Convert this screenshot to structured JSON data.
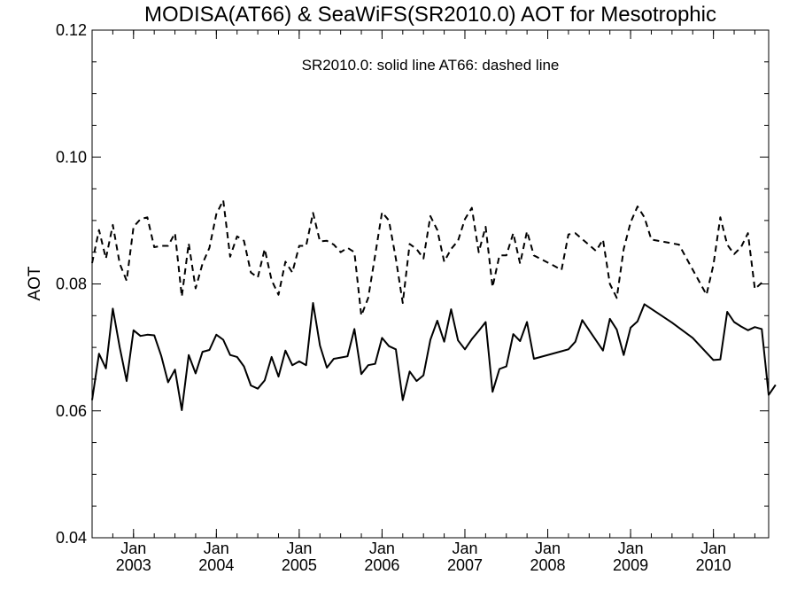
{
  "chart_data": {
    "type": "line",
    "title": "MODISA(AT66) & SeaWiFS(SR2010.0)  AOT for Mesotrophic",
    "annotation": "SR2010.0: solid line   AT66: dashed line",
    "xlabel": "",
    "ylabel": "AOT",
    "ylim": [
      0.04,
      0.12
    ],
    "xlim": [
      "2002-07-01",
      "2010-09-01"
    ],
    "grid": false,
    "y_ticks": [
      "0.04",
      "0.06",
      "0.08",
      "0.10",
      "0.12"
    ],
    "x_ticks": [
      {
        "month": "Jan",
        "year": "2003",
        "date": "2003-01-01"
      },
      {
        "month": "Jan",
        "year": "2004",
        "date": "2004-01-01"
      },
      {
        "month": "Jan",
        "year": "2005",
        "date": "2005-01-01"
      },
      {
        "month": "Jan",
        "year": "2006",
        "date": "2006-01-01"
      },
      {
        "month": "Jan",
        "year": "2007",
        "date": "2007-01-01"
      },
      {
        "month": "Jan",
        "year": "2008",
        "date": "2008-01-01"
      },
      {
        "month": "Jan",
        "year": "2009",
        "date": "2009-01-01"
      },
      {
        "month": "Jan",
        "year": "2010",
        "date": "2010-01-01"
      }
    ],
    "series": [
      {
        "name": "SR2010.0",
        "style": "solid",
        "color": "#000000",
        "points": [
          [
            "2002-07",
            0.0617
          ],
          [
            "2002-08",
            0.069
          ],
          [
            "2002-09",
            0.0667
          ],
          [
            "2002-10",
            0.0761
          ],
          [
            "2002-11",
            0.07
          ],
          [
            "2002-12",
            0.0647
          ],
          [
            "2003-01",
            0.0727
          ],
          [
            "2003-02",
            0.0718
          ],
          [
            "2003-03",
            0.072
          ],
          [
            "2003-04",
            0.0719
          ],
          [
            "2003-05",
            0.0687
          ],
          [
            "2003-06",
            0.0645
          ],
          [
            "2003-07",
            0.0665
          ],
          [
            "2003-08",
            0.0601
          ],
          [
            "2003-09",
            0.0688
          ],
          [
            "2003-10",
            0.0659
          ],
          [
            "2003-11",
            0.0693
          ],
          [
            "2003-12",
            0.0696
          ],
          [
            "2004-01",
            0.072
          ],
          [
            "2004-02",
            0.0712
          ],
          [
            "2004-03",
            0.0688
          ],
          [
            "2004-04",
            0.0685
          ],
          [
            "2004-05",
            0.067
          ],
          [
            "2004-06",
            0.064
          ],
          [
            "2004-07",
            0.0635
          ],
          [
            "2004-08",
            0.0648
          ],
          [
            "2004-09",
            0.0685
          ],
          [
            "2004-10",
            0.0654
          ],
          [
            "2004-11",
            0.0695
          ],
          [
            "2004-12",
            0.0672
          ],
          [
            "2005-01",
            0.0678
          ],
          [
            "2005-02",
            0.0672
          ],
          [
            "2005-03",
            0.077
          ],
          [
            "2005-04",
            0.0703
          ],
          [
            "2005-05",
            0.0668
          ],
          [
            "2005-06",
            0.0682
          ],
          [
            "2005-07",
            0.0684
          ],
          [
            "2005-08",
            0.0686
          ],
          [
            "2005-09",
            0.0729
          ],
          [
            "2005-10",
            0.0658
          ],
          [
            "2005-11",
            0.0672
          ],
          [
            "2005-12",
            0.0674
          ],
          [
            "2006-01",
            0.0715
          ],
          [
            "2006-02",
            0.0702
          ],
          [
            "2006-03",
            0.0697
          ],
          [
            "2006-04",
            0.0617
          ],
          [
            "2006-05",
            0.0662
          ],
          [
            "2006-06",
            0.0647
          ],
          [
            "2006-07",
            0.0656
          ],
          [
            "2006-08",
            0.0712
          ],
          [
            "2006-09",
            0.0742
          ],
          [
            "2006-10",
            0.0709
          ],
          [
            "2006-11",
            0.076
          ],
          [
            "2006-12",
            0.0711
          ],
          [
            "2007-01",
            0.0697
          ],
          [
            "2007-02",
            0.0713
          ],
          [
            "2007-03",
            0.0726
          ],
          [
            "2007-04",
            0.074
          ],
          [
            "2007-05",
            0.063
          ],
          [
            "2007-06",
            0.0666
          ],
          [
            "2007-07",
            0.067
          ],
          [
            "2007-08",
            0.0721
          ],
          [
            "2007-09",
            0.071
          ],
          [
            "2007-10",
            0.074
          ],
          [
            "2007-11",
            0.0682
          ],
          [
            "2008-04",
            0.0697
          ],
          [
            "2008-05",
            0.0709
          ],
          [
            "2008-06",
            0.0743
          ],
          [
            "2008-09",
            0.0695
          ],
          [
            "2008-10",
            0.0745
          ],
          [
            "2008-11",
            0.0728
          ],
          [
            "2008-12",
            0.0688
          ],
          [
            "2009-01",
            0.0731
          ],
          [
            "2009-02",
            0.0741
          ],
          [
            "2009-03",
            0.0768
          ],
          [
            "2009-07",
            0.0739
          ],
          [
            "2009-10",
            0.0715
          ],
          [
            "2010-01",
            0.068
          ],
          [
            "2010-02",
            0.0681
          ],
          [
            "2010-03",
            0.0756
          ],
          [
            "2010-04",
            0.074
          ],
          [
            "2010-05",
            0.0733
          ],
          [
            "2010-06",
            0.0727
          ],
          [
            "2010-07",
            0.0732
          ],
          [
            "2010-08",
            0.0729
          ],
          [
            "2010-09",
            0.0625
          ],
          [
            "2010-10",
            0.0641
          ]
        ]
      },
      {
        "name": "AT66",
        "style": "dashed",
        "color": "#000000",
        "points": [
          [
            "2002-07",
            0.0833
          ],
          [
            "2002-08",
            0.0885
          ],
          [
            "2002-09",
            0.084
          ],
          [
            "2002-10",
            0.0893
          ],
          [
            "2002-11",
            0.0832
          ],
          [
            "2002-12",
            0.0805
          ],
          [
            "2003-01",
            0.089
          ],
          [
            "2003-02",
            0.0902
          ],
          [
            "2003-03",
            0.0905
          ],
          [
            "2003-04",
            0.0858
          ],
          [
            "2003-05",
            0.086
          ],
          [
            "2003-06",
            0.086
          ],
          [
            "2003-07",
            0.088
          ],
          [
            "2003-08",
            0.078
          ],
          [
            "2003-09",
            0.0864
          ],
          [
            "2003-10",
            0.0793
          ],
          [
            "2003-11",
            0.0832
          ],
          [
            "2003-12",
            0.0857
          ],
          [
            "2004-01",
            0.091
          ],
          [
            "2004-02",
            0.0932
          ],
          [
            "2004-03",
            0.0843
          ],
          [
            "2004-04",
            0.0875
          ],
          [
            "2004-05",
            0.0868
          ],
          [
            "2004-06",
            0.0818
          ],
          [
            "2004-07",
            0.081
          ],
          [
            "2004-08",
            0.0855
          ],
          [
            "2004-09",
            0.0806
          ],
          [
            "2004-10",
            0.0783
          ],
          [
            "2004-11",
            0.0835
          ],
          [
            "2004-12",
            0.0818
          ],
          [
            "2005-01",
            0.086
          ],
          [
            "2005-02",
            0.086
          ],
          [
            "2005-03",
            0.0912
          ],
          [
            "2005-04",
            0.0867
          ],
          [
            "2005-05",
            0.0868
          ],
          [
            "2005-06",
            0.0862
          ],
          [
            "2005-07",
            0.085
          ],
          [
            "2005-08",
            0.0857
          ],
          [
            "2005-09",
            0.085
          ],
          [
            "2005-10",
            0.075
          ],
          [
            "2005-11",
            0.0778
          ],
          [
            "2005-12",
            0.0845
          ],
          [
            "2006-01",
            0.0913
          ],
          [
            "2006-02",
            0.09
          ],
          [
            "2006-03",
            0.084
          ],
          [
            "2006-04",
            0.077
          ],
          [
            "2006-05",
            0.0863
          ],
          [
            "2006-06",
            0.0855
          ],
          [
            "2006-07",
            0.084
          ],
          [
            "2006-08",
            0.0907
          ],
          [
            "2006-09",
            0.0885
          ],
          [
            "2006-10",
            0.0835
          ],
          [
            "2006-11",
            0.0855
          ],
          [
            "2006-12",
            0.0868
          ],
          [
            "2007-01",
            0.0902
          ],
          [
            "2007-02",
            0.092
          ],
          [
            "2007-03",
            0.085
          ],
          [
            "2007-04",
            0.089
          ],
          [
            "2007-05",
            0.0795
          ],
          [
            "2007-06",
            0.0845
          ],
          [
            "2007-07",
            0.0845
          ],
          [
            "2007-08",
            0.088
          ],
          [
            "2007-09",
            0.0832
          ],
          [
            "2007-10",
            0.0883
          ],
          [
            "2007-11",
            0.0845
          ],
          [
            "2008-02",
            0.0828
          ],
          [
            "2008-03",
            0.0822
          ],
          [
            "2008-04",
            0.0878
          ],
          [
            "2008-05",
            0.088
          ],
          [
            "2008-08",
            0.0852
          ],
          [
            "2008-09",
            0.087
          ],
          [
            "2008-10",
            0.08
          ],
          [
            "2008-11",
            0.0778
          ],
          [
            "2008-12",
            0.0855
          ],
          [
            "2009-01",
            0.0897
          ],
          [
            "2009-02",
            0.0922
          ],
          [
            "2009-03",
            0.0905
          ],
          [
            "2009-04",
            0.087
          ],
          [
            "2009-08",
            0.0862
          ],
          [
            "2009-12",
            0.0783
          ],
          [
            "2010-01",
            0.083
          ],
          [
            "2010-02",
            0.0905
          ],
          [
            "2010-03",
            0.0862
          ],
          [
            "2010-04",
            0.0847
          ],
          [
            "2010-05",
            0.0858
          ],
          [
            "2010-06",
            0.088
          ],
          [
            "2010-07",
            0.0792
          ],
          [
            "2010-08",
            0.0802
          ]
        ]
      }
    ]
  }
}
